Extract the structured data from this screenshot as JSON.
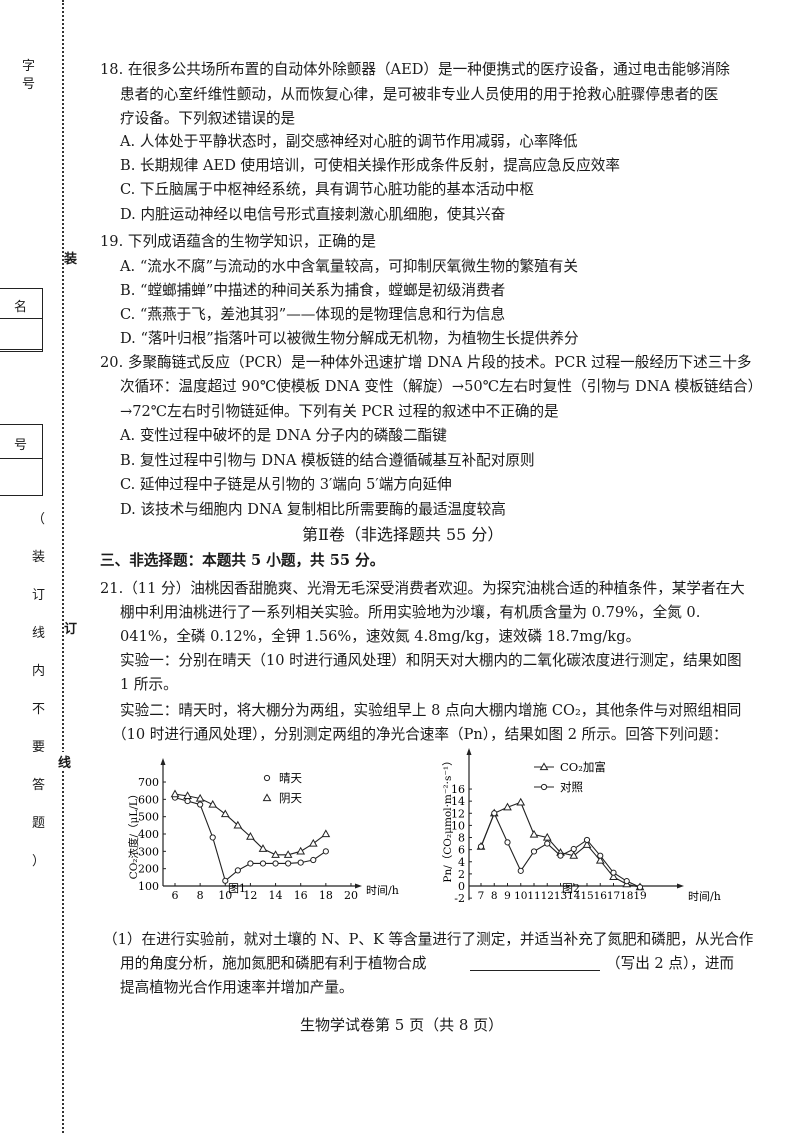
{
  "margin": {
    "top_label": "字号",
    "bind_chars": [
      "装",
      "订",
      "线"
    ],
    "box_labels": [
      "名",
      "号"
    ],
    "notice": [
      "（",
      "装",
      "订",
      "线",
      "内",
      "不",
      "要",
      "答",
      "题",
      "）"
    ]
  },
  "q18": {
    "lines": [
      "18. 在很多公共场所布置的自动体外除颤器（AED）是一种便携式的医疗设备，通过电击能够消除",
      "患者的心室纤维性颤动，从而恢复心律，是可被非专业人员使用的用于抢救心脏骤停患者的医",
      "疗设备。下列叙述错误的是"
    ],
    "options": [
      "A. 人体处于平静状态时，副交感神经对心脏的调节作用减弱，心率降低",
      "B. 长期规律 AED 使用培训，可使相关操作形成条件反射，提高应急反应效率",
      "C. 下丘脑属于中枢神经系统，具有调节心脏功能的基本活动中枢",
      "D. 内脏运动神经以电信号形式直接刺激心肌细胞，使其兴奋"
    ]
  },
  "q19": {
    "lines": [
      "19. 下列成语蕴含的生物学知识，正确的是"
    ],
    "options": [
      "A. “流水不腐”与流动的水中含氧量较高，可抑制厌氧微生物的繁殖有关",
      "B. “螳螂捕蝉”中描述的种间关系为捕食，螳螂是初级消费者",
      "C. “燕燕于飞，差池其羽”——体现的是物理信息和行为信息",
      "D. “落叶归根”指落叶可以被微生物分解成无机物，为植物生长提供养分"
    ]
  },
  "q20": {
    "lines": [
      "20. 多聚酶链式反应（PCR）是一种体外迅速扩增 DNA 片段的技术。PCR 过程一般经历下述三十多",
      "次循环：温度超过 90℃使模板 DNA 变性（解旋）→50℃左右时复性（引物与 DNA 模板链结合）",
      "→72℃左右时引物链延伸。下列有关 PCR 过程的叙述中不正确的是"
    ],
    "options": [
      "A. 变性过程中破坏的是 DNA 分子内的磷酸二酯键",
      "B. 复性过程中引物与 DNA 模板链的结合遵循碱基互补配对原则",
      "C. 延伸过程中子链是从引物的 3′端向 5′端方向延伸",
      "D. 该技术与细胞内 DNA 复制相比所需要酶的最适温度较高"
    ]
  },
  "part2_heading": "第Ⅱ卷（非选择题共 55 分）",
  "section3": "三、非选择题：本题共 5 小题，共 55 分。",
  "q21": {
    "lines": [
      "21.（11 分）油桃因香甜脆爽、光滑无毛深受消费者欢迎。为探究油桃合适的种植条件，某学者在大",
      "棚中利用油桃进行了一系列相关实验。所用实验地为沙壤，有机质含量为 0.79%，全氮 0.",
      "041%，全磷 0.12%，全钾 1.56%，速效氮 4.8mg/kg，速效磷 18.7mg/kg。",
      "实验一：分别在晴天（10 时进行通风处理）和阴天对大棚内的二氧化碳浓度进行测定，结果如图",
      "1 所示。",
      "实验二：晴天时，将大棚分为两组，实验组早上 8 点向大棚内增施 CO₂，其他条件与对照组相同",
      "（10 时进行通风处理），分别测定两组的净光合速率（Pn），结果如图 2 所示。回答下列问题："
    ],
    "sub1": [
      "（1）在进行实验前，就对土壤的 N、P、K 等含量进行了测定，并适当补充了氮肥和磷肥，从光合作",
      "用的角度分析，施加氮肥和磷肥有利于植物合成",
      "（写出 2 点），进而",
      "提高植物光合作用速率并增加产量。"
    ]
  },
  "chart_data": [
    {
      "type": "line",
      "title": "图1",
      "xlabel": "时间/h",
      "ylabel": "CO₂浓度/（μL/L）",
      "xlim": [
        6,
        20
      ],
      "ylim": [
        100,
        700
      ],
      "xticks": [
        6,
        8,
        10,
        12,
        14,
        16,
        18,
        20
      ],
      "yticks": [
        100,
        200,
        300,
        400,
        500,
        600,
        700
      ],
      "legend": "top-right",
      "x": [
        6,
        7,
        8,
        9,
        10,
        11,
        12,
        13,
        14,
        15,
        16,
        17,
        18
      ],
      "series": [
        {
          "name": "晴天",
          "marker": "circle",
          "values": [
            610,
            590,
            570,
            380,
            130,
            190,
            230,
            230,
            230,
            230,
            235,
            250,
            300
          ]
        },
        {
          "name": "阴天",
          "marker": "triangle",
          "values": [
            630,
            620,
            605,
            570,
            515,
            450,
            385,
            315,
            280,
            280,
            300,
            345,
            400
          ]
        }
      ]
    },
    {
      "type": "line",
      "title": "图2",
      "xlabel": "时间/h",
      "ylabel": "Pn/（CO₂μmol·m⁻²·s⁻¹）",
      "xlim": [
        7,
        19
      ],
      "ylim": [
        -2,
        16
      ],
      "xticks": [
        7,
        8,
        9,
        10,
        11,
        12,
        13,
        14,
        15,
        16,
        17,
        18,
        19
      ],
      "yticks": [
        -2,
        0,
        2,
        4,
        6,
        8,
        10,
        12,
        14,
        16
      ],
      "legend": "top-right",
      "x": [
        7,
        8,
        9,
        10,
        11,
        12,
        13,
        14,
        15,
        16,
        17,
        18,
        19
      ],
      "series": [
        {
          "name": "CO₂加富",
          "marker": "triangle",
          "values": [
            6.5,
            12,
            13,
            13.8,
            8.5,
            8,
            5.5,
            5,
            6.8,
            4.2,
            1.5,
            0.3,
            -0.2
          ]
        },
        {
          "name": "对照",
          "marker": "circle",
          "values": [
            6.5,
            12,
            7.2,
            2.5,
            5.7,
            7,
            5,
            6.1,
            7.6,
            5,
            2.2,
            0.8,
            -0.2
          ]
        }
      ]
    }
  ],
  "footer": "生物学试卷第 5 页（共 8 页）"
}
